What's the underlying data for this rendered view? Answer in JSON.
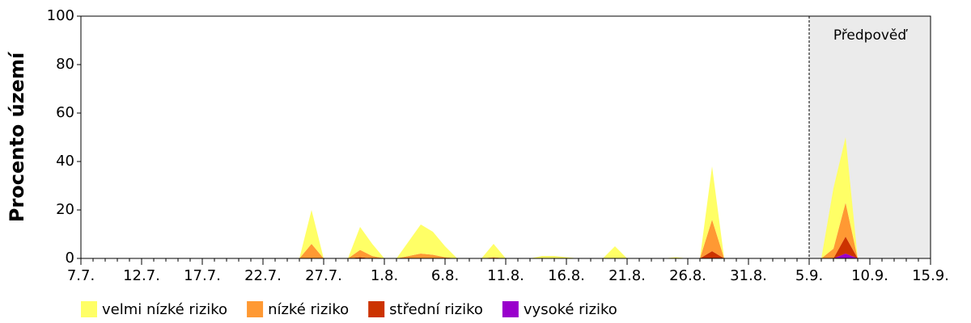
{
  "chart_data": {
    "type": "stacked-area",
    "y_label": "Procento území",
    "categories": [
      "7.7.",
      null,
      null,
      null,
      null,
      "12.7.",
      null,
      null,
      null,
      null,
      "17.7.",
      null,
      null,
      null,
      null,
      "22.7.",
      null,
      null,
      null,
      null,
      "27.7.",
      null,
      null,
      null,
      null,
      "1.8.",
      null,
      null,
      null,
      null,
      "6.8.",
      null,
      null,
      null,
      null,
      "11.8.",
      null,
      null,
      null,
      null,
      "16.8.",
      null,
      null,
      null,
      null,
      "21.8.",
      null,
      null,
      null,
      null,
      "26.8.",
      null,
      null,
      null,
      null,
      "31.8.",
      null,
      null,
      null,
      null,
      "5.9.",
      null,
      null,
      null,
      null,
      "10.9.",
      null,
      null,
      null,
      null,
      "15.9."
    ],
    "series": [
      {
        "name": "velmi nízké riziko",
        "color": "#ffff66",
        "values": [
          0,
          0,
          0,
          0,
          0,
          0,
          0,
          0,
          0,
          0,
          0,
          0,
          0,
          0,
          0,
          0,
          0,
          0,
          0,
          14,
          0,
          0,
          0,
          9.5,
          5,
          0,
          0,
          6,
          12,
          9.5,
          4.5,
          0,
          0,
          0,
          5.5,
          0,
          0,
          0,
          1,
          1,
          0.5,
          0,
          0,
          0,
          5,
          0,
          0,
          0,
          0,
          0.5,
          0,
          0,
          22,
          0,
          0,
          0,
          0,
          0,
          0,
          0,
          0,
          0,
          25,
          27,
          0,
          0,
          0,
          0,
          0,
          0,
          0
        ]
      },
      {
        "name": "nízké riziko",
        "color": "#ff9933",
        "values": [
          0,
          0,
          0,
          0,
          0,
          0,
          0,
          0,
          0,
          0,
          0,
          0,
          0,
          0,
          0,
          0,
          0,
          0,
          0,
          6,
          0,
          0,
          0,
          3,
          1,
          0,
          0,
          1,
          2,
          1.5,
          0.5,
          0,
          0,
          0,
          0.5,
          0,
          0,
          0,
          0,
          0,
          0,
          0,
          0,
          0,
          0,
          0,
          0,
          0,
          0,
          0,
          0,
          0,
          13,
          0,
          0,
          0,
          0,
          0,
          0,
          0,
          0,
          0,
          4,
          14,
          0,
          0,
          0,
          0,
          0,
          0,
          0
        ]
      },
      {
        "name": "střední riziko",
        "color": "#cc3300",
        "values": [
          0,
          0,
          0,
          0,
          0,
          0,
          0,
          0,
          0,
          0,
          0,
          0,
          0,
          0,
          0,
          0,
          0,
          0,
          0,
          0,
          0,
          0,
          0,
          0.5,
          0,
          0,
          0,
          0,
          0,
          0,
          0,
          0,
          0,
          0,
          0,
          0,
          0,
          0,
          0,
          0,
          0,
          0,
          0,
          0,
          0,
          0,
          0,
          0,
          0,
          0,
          0,
          0,
          3,
          0,
          0,
          0,
          0,
          0,
          0,
          0,
          0,
          0,
          0,
          7,
          0,
          0,
          0,
          0,
          0,
          0,
          0
        ]
      },
      {
        "name": "vysoké riziko",
        "color": "#9900cc",
        "values": [
          0,
          0,
          0,
          0,
          0,
          0,
          0,
          0,
          0,
          0,
          0,
          0,
          0,
          0,
          0,
          0,
          0,
          0,
          0,
          0,
          0,
          0,
          0,
          0,
          0,
          0,
          0,
          0,
          0,
          0,
          0,
          0,
          0,
          0,
          0,
          0,
          0,
          0,
          0,
          0,
          0,
          0,
          0,
          0,
          0,
          0,
          0,
          0,
          0,
          0,
          0,
          0,
          0,
          0,
          0,
          0,
          0,
          0,
          0,
          0,
          0,
          0,
          0,
          2,
          0,
          0,
          0,
          0,
          0,
          0,
          0
        ]
      }
    ],
    "forecast": {
      "label": "Předpověď",
      "from": "5.9."
    },
    "ylim": [
      0,
      100
    ],
    "yticks": [
      0,
      20,
      40,
      60,
      80,
      100
    ],
    "grid": false
  }
}
